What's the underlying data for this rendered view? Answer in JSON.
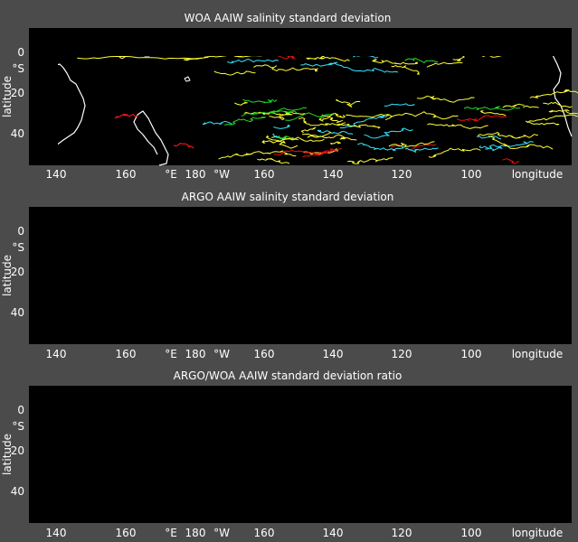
{
  "figure": {
    "background": "#4b4b4b",
    "axes_background": "#000000",
    "foreground": "#ffffff"
  },
  "panels": [
    {
      "title": "WOA AAIW salinity standard deviation",
      "ylabel": "latitude",
      "xlabel": "longitude",
      "hemisphere_label": "°S",
      "yticks": [
        "0",
        "20",
        "40"
      ],
      "xticks": [
        "140",
        "160",
        "180",
        "160",
        "140",
        "120",
        "100"
      ],
      "x_hemi_east": "°E",
      "x_hemi_west": "°W"
    },
    {
      "title": "ARGO AAIW salinity standard deviation",
      "ylabel": "latitude",
      "xlabel": "longitude",
      "hemisphere_label": "°S",
      "yticks": [
        "0",
        "20",
        "40"
      ],
      "xticks": [
        "140",
        "160",
        "180",
        "160",
        "140",
        "120",
        "100"
      ],
      "x_hemi_east": "°E",
      "x_hemi_west": "°W"
    },
    {
      "title": "ARGO/WOA AAIW standard deviation ratio",
      "ylabel": "latitude",
      "xlabel": "longitude",
      "hemisphere_label": "°S",
      "yticks": [
        "0",
        "20",
        "40"
      ],
      "xticks": [
        "140",
        "160",
        "180",
        "160",
        "140",
        "120",
        "100"
      ],
      "x_hemi_east": "°E",
      "x_hemi_west": "°W"
    }
  ],
  "contour_colors": {
    "yellow": "#ffff33",
    "cyan": "#33e5ff",
    "green": "#22dd22",
    "red": "#ee1111",
    "coast": "#ffffff"
  },
  "map_extent": {
    "lon_min_deg_east": 135,
    "lon_max_deg_east": 270,
    "lat_top": -10,
    "lat_bottom": 55
  }
}
